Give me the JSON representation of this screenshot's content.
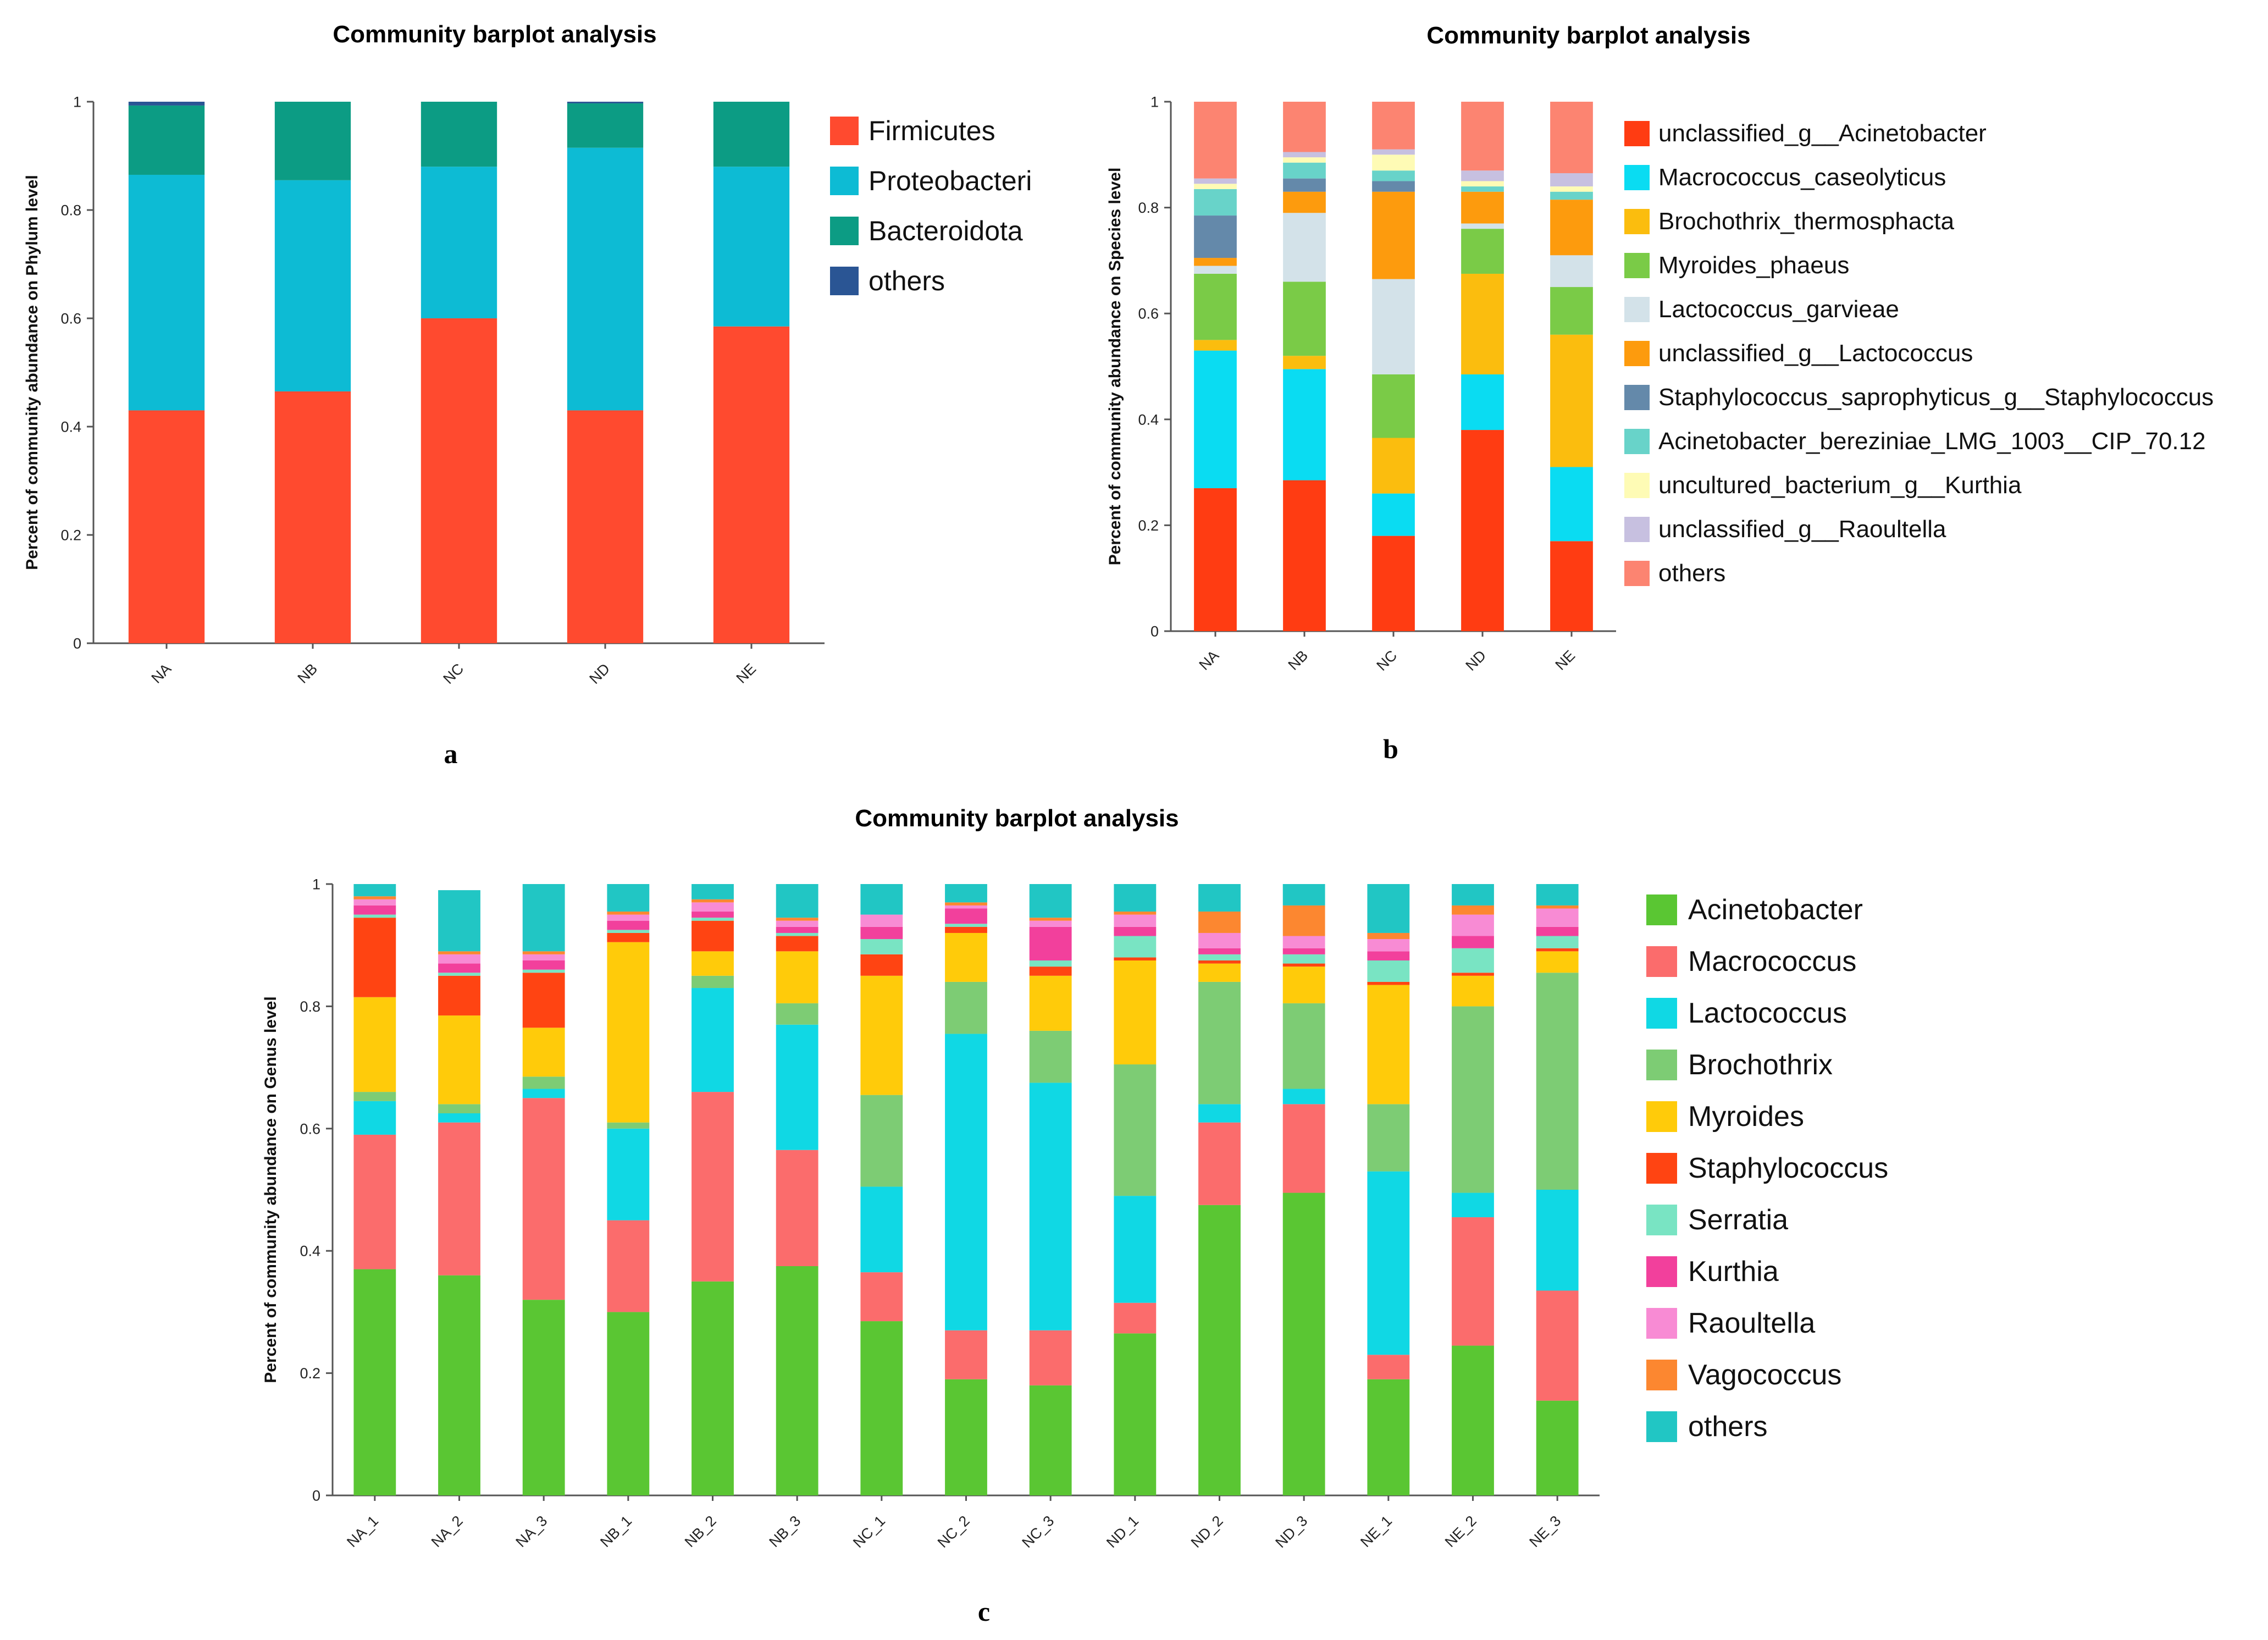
{
  "chart_data": [
    {
      "type": "bar",
      "stacked": true,
      "panel_label": "a",
      "title": "Community barplot analysis",
      "xlabel": "",
      "ylabel": "Percent of community abundance on Phylum level",
      "ylim": [
        0,
        1
      ],
      "yticks": [
        "0",
        "0.2",
        "0.4",
        "0.6",
        "0.8",
        "1"
      ],
      "categories": [
        "NA",
        "NB",
        "NC",
        "ND",
        "NE"
      ],
      "series": [
        {
          "name": "Firmicutes",
          "color": "#ff4a2f",
          "values": [
            0.43,
            0.465,
            0.6,
            0.43,
            0.585
          ]
        },
        {
          "name": "Proteobacteri",
          "color": "#0dbbd4",
          "values": [
            0.435,
            0.39,
            0.28,
            0.485,
            0.295
          ]
        },
        {
          "name": "Bacteroidota",
          "color": "#0c9c84",
          "values": [
            0.128,
            0.145,
            0.12,
            0.082,
            0.12
          ]
        },
        {
          "name": "others",
          "color": "#2a5594",
          "values": [
            0.007,
            0.0,
            0.0,
            0.003,
            0.0
          ]
        }
      ]
    },
    {
      "type": "bar",
      "stacked": true,
      "panel_label": "b",
      "title": "Community barplot analysis",
      "xlabel": "",
      "ylabel": "Percent of community abundance on Species level",
      "ylim": [
        0,
        1
      ],
      "yticks": [
        "0",
        "0.2",
        "0.4",
        "0.6",
        "0.8",
        "1"
      ],
      "categories": [
        "NA",
        "NB",
        "NC",
        "ND",
        "NE"
      ],
      "series": [
        {
          "name": "unclassified_g__Acinetobacter",
          "color": "#ff3c12",
          "values": [
            0.27,
            0.285,
            0.18,
            0.38,
            0.17
          ]
        },
        {
          "name": "Macrococcus_caseolyticus",
          "color": "#0adcf2",
          "values": [
            0.26,
            0.21,
            0.08,
            0.105,
            0.14
          ]
        },
        {
          "name": "Brochothrix_thermosphacta",
          "color": "#fbbd0e",
          "values": [
            0.02,
            0.025,
            0.105,
            0.19,
            0.25
          ]
        },
        {
          "name": "Myroides_phaeus",
          "color": "#7acb47",
          "values": [
            0.125,
            0.14,
            0.12,
            0.085,
            0.09
          ]
        },
        {
          "name": "Lactococcus_garvieae",
          "color": "#d3e2e9",
          "values": [
            0.015,
            0.13,
            0.18,
            0.01,
            0.06
          ]
        },
        {
          "name": "unclassified_g__Lactococcus",
          "color": "#fd9b0d",
          "values": [
            0.015,
            0.04,
            0.165,
            0.06,
            0.105
          ]
        },
        {
          "name": "Staphylococcus_saprophyticus_g__Staphylococcus",
          "color": "#6489aa",
          "values": [
            0.08,
            0.025,
            0.02,
            0.0,
            0.0
          ]
        },
        {
          "name": "Acinetobacter_bereziniae_LMG_1003__CIP_70.12",
          "color": "#68d3c9",
          "values": [
            0.05,
            0.03,
            0.02,
            0.01,
            0.015
          ]
        },
        {
          "name": "uncultured_bacterium_g__Kurthia",
          "color": "#fefbb5",
          "values": [
            0.01,
            0.01,
            0.03,
            0.01,
            0.01
          ]
        },
        {
          "name": "unclassified_g__Raoultella",
          "color": "#c7c0e0",
          "values": [
            0.01,
            0.01,
            0.01,
            0.02,
            0.025
          ]
        },
        {
          "name": "others",
          "color": "#fc8471",
          "values": [
            0.145,
            0.095,
            0.09,
            0.13,
            0.135
          ]
        }
      ]
    },
    {
      "type": "bar",
      "stacked": true,
      "panel_label": "c",
      "title": "Community barplot analysis",
      "xlabel": "",
      "ylabel": "Percent of community abundance on Genus level",
      "ylim": [
        0,
        1
      ],
      "yticks": [
        "0",
        "0.2",
        "0.4",
        "0.6",
        "0.8",
        "1"
      ],
      "categories": [
        "NA_1",
        "NA_2",
        "NA_3",
        "NB_1",
        "NB_2",
        "NB_3",
        "NC_1",
        "NC_2",
        "NC_3",
        "ND_1",
        "ND_2",
        "ND_3",
        "NE_1",
        "NE_2",
        "NE_3"
      ],
      "series": [
        {
          "name": "Acinetobacter",
          "color": "#5ac633",
          "values": [
            0.37,
            0.36,
            0.32,
            0.3,
            0.35,
            0.375,
            0.285,
            0.19,
            0.18,
            0.265,
            0.475,
            0.495,
            0.19,
            0.245,
            0.155
          ]
        },
        {
          "name": "Macrococcus",
          "color": "#fb6c6c",
          "values": [
            0.22,
            0.25,
            0.33,
            0.15,
            0.31,
            0.19,
            0.08,
            0.08,
            0.09,
            0.05,
            0.135,
            0.145,
            0.04,
            0.21,
            0.18
          ]
        },
        {
          "name": "Lactococcus",
          "color": "#10d8e4",
          "values": [
            0.055,
            0.015,
            0.015,
            0.15,
            0.17,
            0.205,
            0.14,
            0.485,
            0.405,
            0.175,
            0.03,
            0.025,
            0.3,
            0.04,
            0.165
          ]
        },
        {
          "name": "Brochothrix",
          "color": "#7dcc74",
          "values": [
            0.015,
            0.015,
            0.02,
            0.01,
            0.02,
            0.035,
            0.15,
            0.085,
            0.085,
            0.215,
            0.2,
            0.14,
            0.11,
            0.305,
            0.355
          ]
        },
        {
          "name": "Myroides",
          "color": "#ffcb0a",
          "values": [
            0.155,
            0.145,
            0.08,
            0.295,
            0.04,
            0.085,
            0.195,
            0.08,
            0.09,
            0.17,
            0.03,
            0.06,
            0.195,
            0.05,
            0.035
          ]
        },
        {
          "name": "Staphylococcus",
          "color": "#ff4412",
          "values": [
            0.13,
            0.065,
            0.09,
            0.015,
            0.05,
            0.025,
            0.035,
            0.01,
            0.015,
            0.005,
            0.005,
            0.005,
            0.005,
            0.005,
            0.005
          ]
        },
        {
          "name": "Serratia",
          "color": "#79e4c3",
          "values": [
            0.005,
            0.005,
            0.005,
            0.005,
            0.005,
            0.005,
            0.025,
            0.005,
            0.01,
            0.035,
            0.01,
            0.015,
            0.035,
            0.04,
            0.02
          ]
        },
        {
          "name": "Kurthia",
          "color": "#f2409c",
          "values": [
            0.015,
            0.015,
            0.015,
            0.015,
            0.01,
            0.01,
            0.02,
            0.025,
            0.055,
            0.015,
            0.01,
            0.01,
            0.015,
            0.02,
            0.015
          ]
        },
        {
          "name": "Raoultella",
          "color": "#f88bd4",
          "values": [
            0.01,
            0.015,
            0.01,
            0.01,
            0.015,
            0.01,
            0.02,
            0.005,
            0.01,
            0.02,
            0.025,
            0.02,
            0.02,
            0.035,
            0.03
          ]
        },
        {
          "name": "Vagococcus",
          "color": "#fc8730",
          "values": [
            0.005,
            0.005,
            0.005,
            0.005,
            0.005,
            0.005,
            0.0,
            0.005,
            0.005,
            0.005,
            0.035,
            0.05,
            0.01,
            0.015,
            0.005
          ]
        },
        {
          "name": "others",
          "color": "#21c6c4",
          "values": [
            0.02,
            0.1,
            0.11,
            0.045,
            0.025,
            0.055,
            0.05,
            0.03,
            0.055,
            0.045,
            0.045,
            0.035,
            0.08,
            0.035,
            0.035
          ]
        }
      ]
    }
  ]
}
